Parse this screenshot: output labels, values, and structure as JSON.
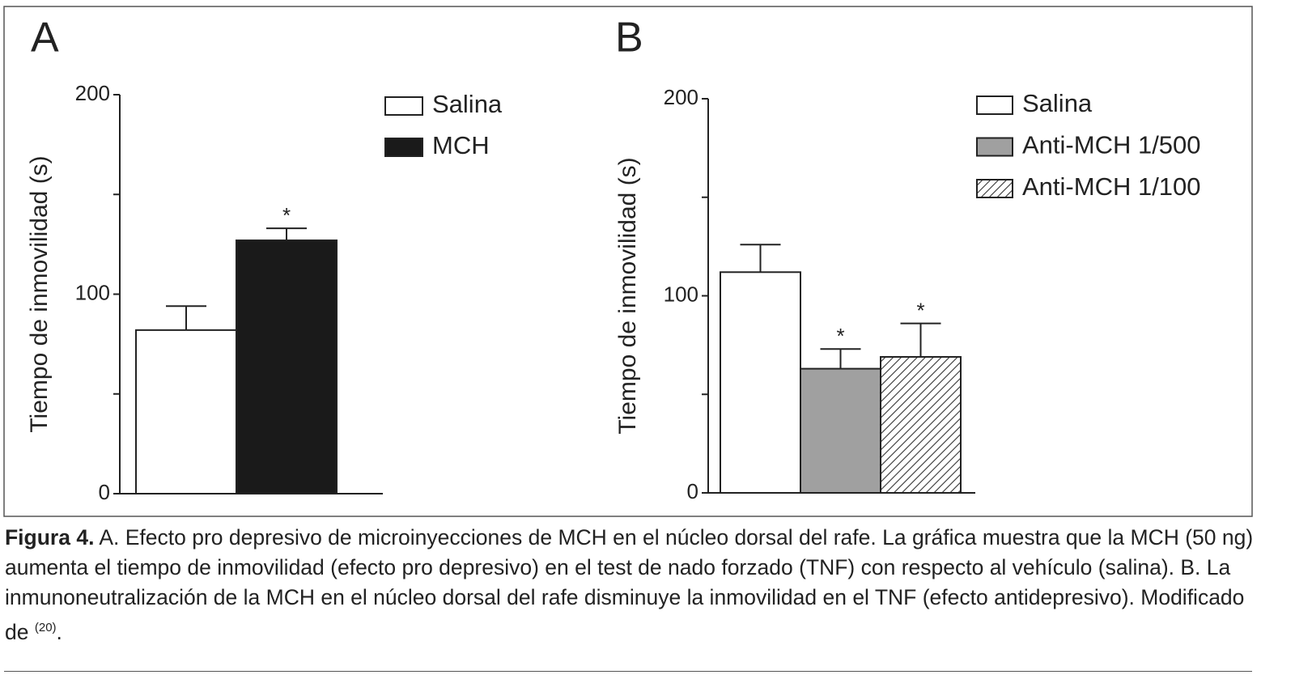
{
  "chart_data": [
    {
      "type": "bar",
      "title": "A",
      "ylabel": "Tiempo de inmovilidad (s)",
      "ylim": [
        0,
        200
      ],
      "yticks": [
        0,
        100,
        200
      ],
      "yminorticks": [
        50,
        150
      ],
      "series": [
        {
          "name": "Salina",
          "color": "#ffffff",
          "values": [
            82
          ],
          "errors": [
            12
          ]
        },
        {
          "name": "MCH",
          "color": "#1a1a1a",
          "values": [
            127
          ],
          "errors": [
            6
          ],
          "annotations": [
            "*"
          ]
        }
      ]
    },
    {
      "type": "bar",
      "title": "B",
      "ylabel": "Tiempo de inmovilidad (s)",
      "ylim": [
        0,
        200
      ],
      "yticks": [
        0,
        100,
        200
      ],
      "yminorticks": [
        50,
        150
      ],
      "series": [
        {
          "name": "Salina",
          "color": "#ffffff",
          "values": [
            112
          ],
          "errors": [
            14
          ]
        },
        {
          "name": "Anti-MCH 1/500",
          "color": "#a0a0a0",
          "values": [
            63
          ],
          "errors": [
            10
          ],
          "annotations": [
            "*"
          ]
        },
        {
          "name": "Anti-MCH 1/100",
          "color": "#ffffff",
          "pattern": "hatch",
          "values": [
            69
          ],
          "errors": [
            17
          ],
          "annotations": [
            "*"
          ]
        }
      ]
    }
  ],
  "caption": {
    "label": "Figura 4.",
    "text": "A. Efecto pro depresivo de microinyecciones de MCH en el núcleo dorsal del rafe. La gráfica muestra que la MCH (50 ng) aumenta el tiempo de inmovilidad (efecto pro depresivo) en el test de nado forzado (TNF) con respecto al vehículo (salina). B. La inmunoneutralización de la MCH en el núcleo dorsal del rafe disminuye la inmovilidad en el TNF (efecto antidepresivo). Modificado de",
    "reference": "(20)",
    "end": "."
  }
}
